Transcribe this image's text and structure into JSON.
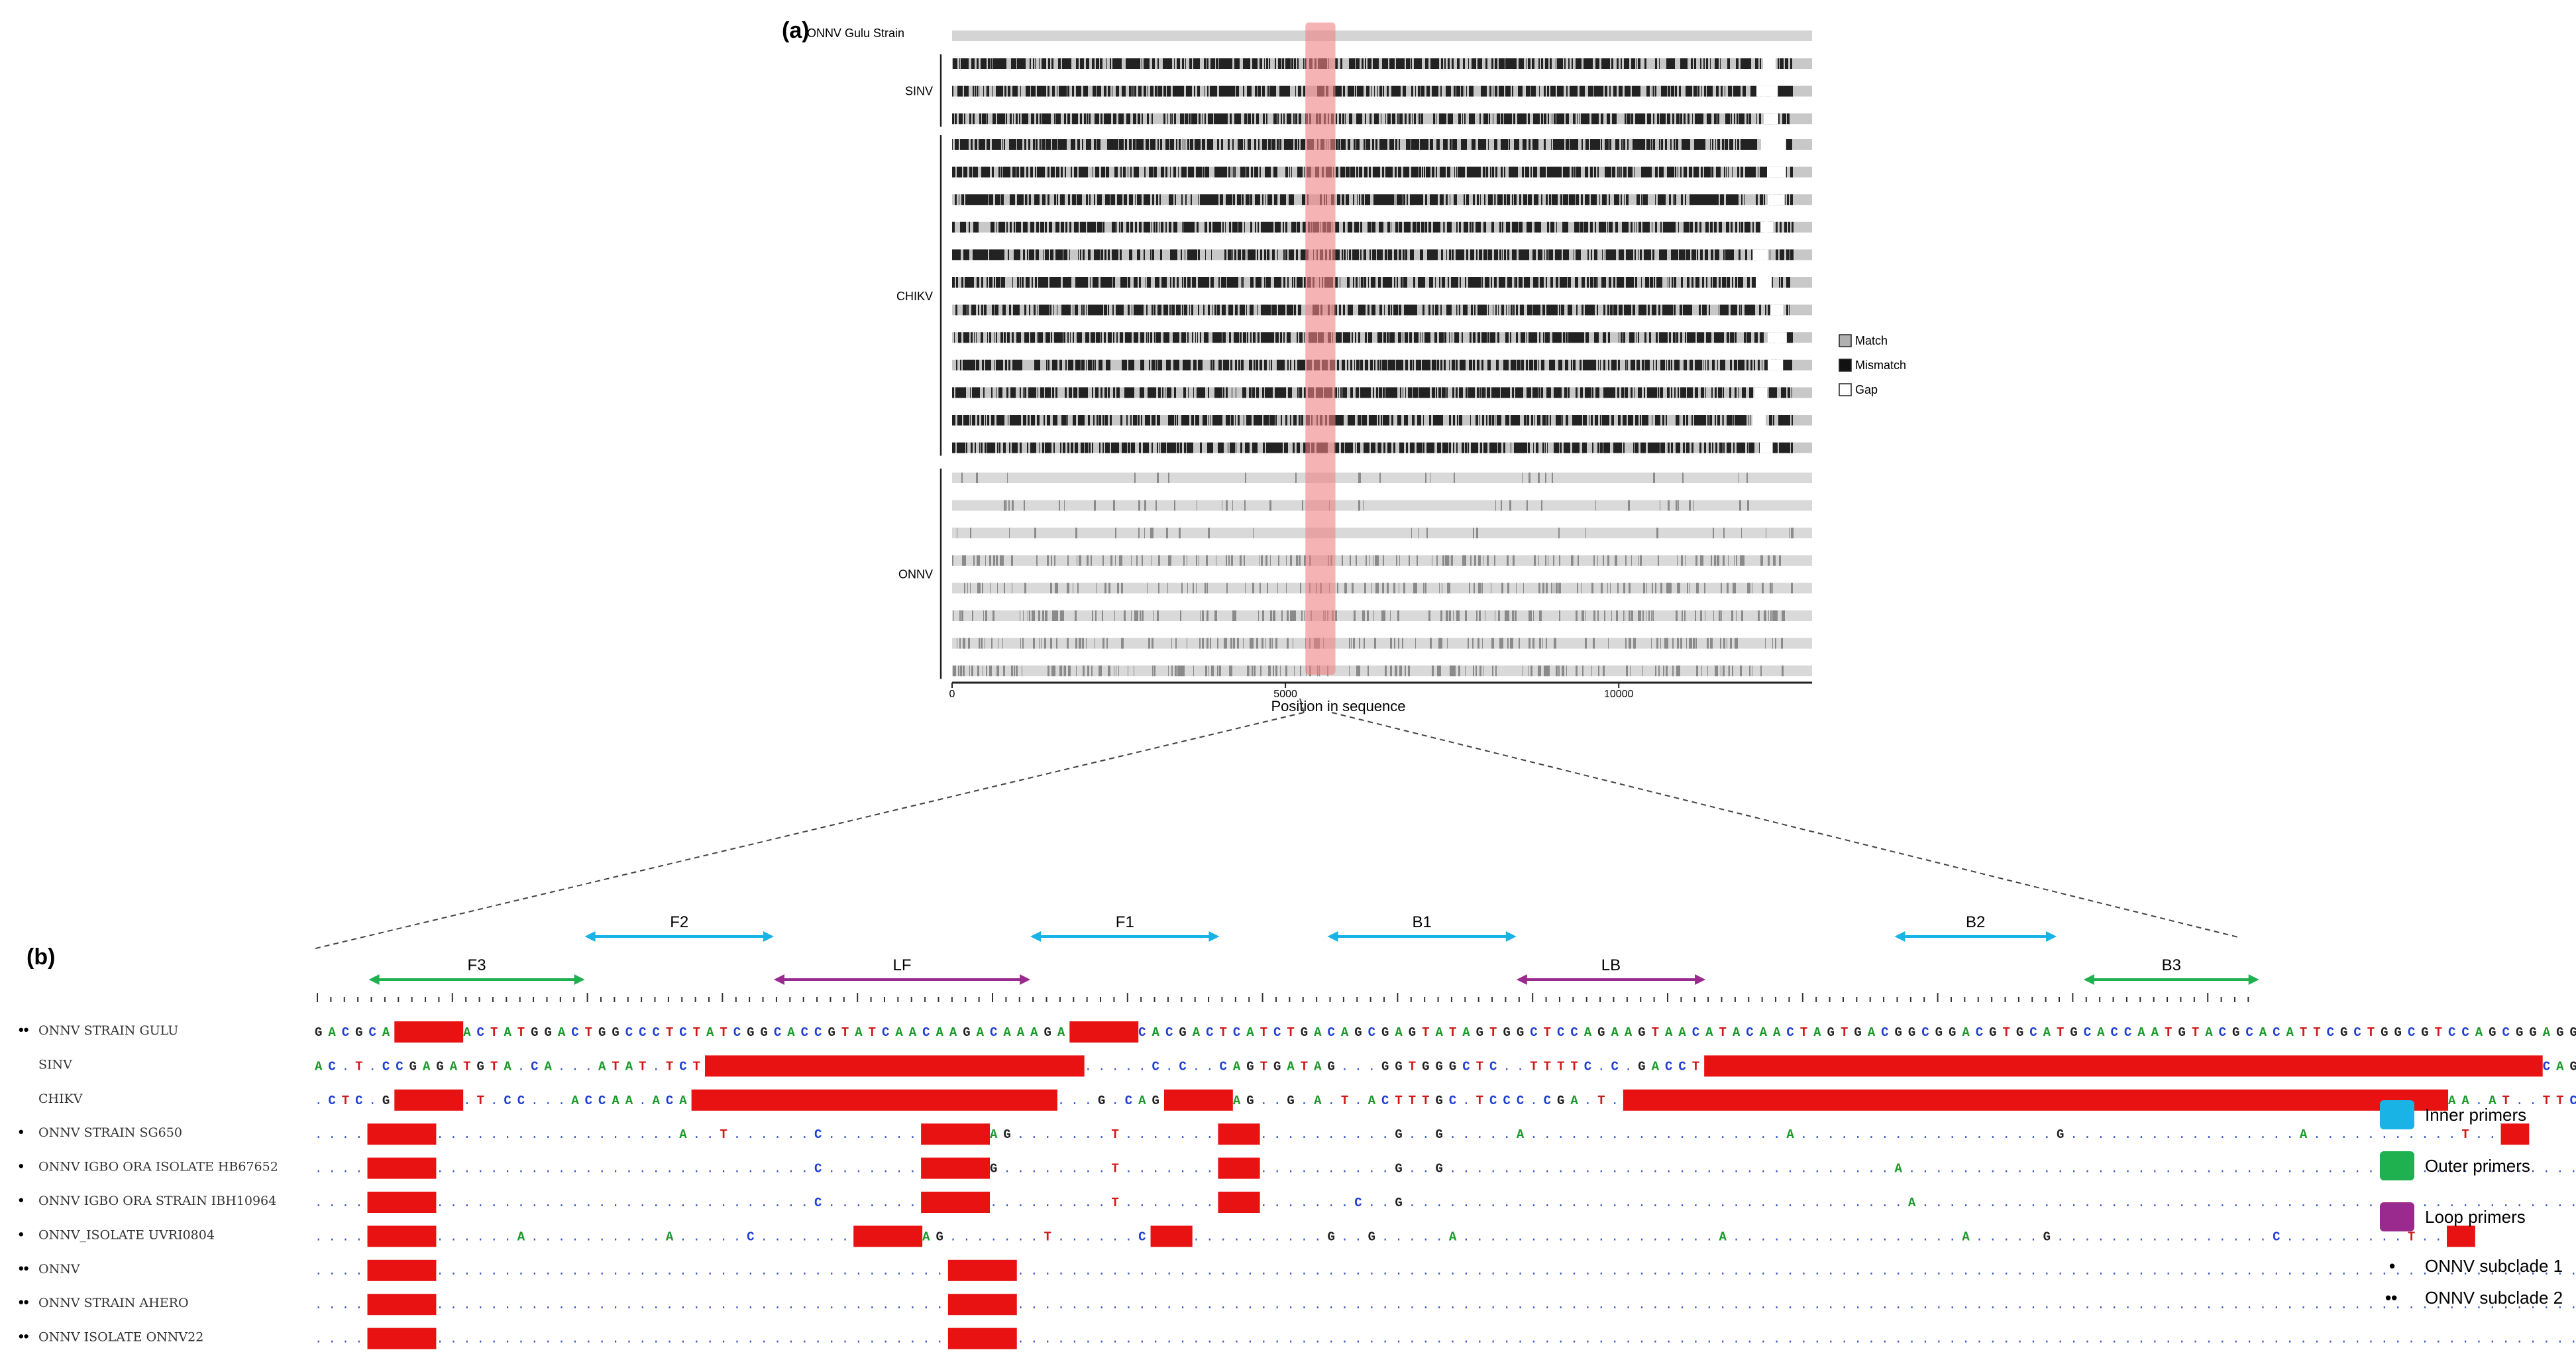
{
  "panel_a": {
    "label": "(a)",
    "reference_label": "ONNV Gulu Strain",
    "groups": [
      {
        "name": "SINV",
        "rows": 3
      },
      {
        "name": "CHIKV",
        "rows": 12
      },
      {
        "name": "ONNV",
        "rows": 8
      }
    ],
    "x_axis": {
      "title": "Position in sequence",
      "ticks": [
        {
          "value": 0,
          "label": "0"
        },
        {
          "value": 5000,
          "label": "5000"
        },
        {
          "value": 10000,
          "label": "10000"
        }
      ],
      "range": [
        0,
        12900
      ]
    },
    "highlight_region": {
      "start": 5300,
      "end": 5750,
      "color": "#f08080"
    },
    "legend": [
      {
        "label": "Match",
        "color": "#b0b0b0"
      },
      {
        "label": "Mismatch",
        "color": "#111111"
      },
      {
        "label": "Gap",
        "color": "#ffffff"
      }
    ],
    "colors": {
      "match": "#d4d4d4",
      "mismatch": "#222222"
    }
  },
  "panel_b": {
    "label": "(b)",
    "primers": [
      {
        "name": "F3",
        "type": "outer",
        "start": 4,
        "end": 20
      },
      {
        "name": "F2",
        "type": "inner",
        "start": 20,
        "end": 34
      },
      {
        "name": "LF",
        "type": "loop",
        "start": 34,
        "end": 53
      },
      {
        "name": "F1",
        "type": "inner",
        "start": 53,
        "end": 67
      },
      {
        "name": "B1",
        "type": "inner",
        "start": 75,
        "end": 89
      },
      {
        "name": "LB",
        "type": "loop",
        "start": 89,
        "end": 103
      },
      {
        "name": "B2",
        "type": "inner",
        "start": 117,
        "end": 129
      },
      {
        "name": "B3",
        "type": "outer",
        "start": 131,
        "end": 144
      }
    ],
    "sequences": [
      {
        "name": "ONNV STRAIN GULU",
        "marker": "••",
        "seq": "GACGCA~~~~~ACTATGGACTGGCCCTCTATCGGCACCGTATCAACAAGACAAAGA~~~~~CACGACTCATCTGACAGCGAGTATAGTGGCTCCAGAAGTAACATACAACTAGTGACGGCGGACGTGCATGCACCAATGTACGCACATTCGCTGGCGTCCAGCGGAGGTTCAATGCTGTCGCTGTCCAGTGAACCAGCTCAGAACGGCACAA-"
      },
      {
        "name": "SINV",
        "marker": "",
        "seq": "AC.T.CCGAGATGTA.CA...ATAT.TCT~~~~~~~~~~~~~~~~~~~~~~~~~~~~.....C.C..CAGTGATAG...GGTGGGCTC..TTTTC.C.GACCT~~~~~~~~~~~~~~~~~~~~~~~~~~~~~~~~~~~~~~~~~~~~~~~~~~~~~~~~~~~~~~CAGCTGCTCCA.TCA.TC.GTCA.CAGC.TGG.CA~~~~~~~~~~A"
      },
      {
        "name": "CHIKV",
        "marker": "",
        "seq": ".CTC.G~~~~~.T.CC...ACCAA.ACA~~~~~~~~~~~~~~~~~~~~~~~~~~~...G.CAG~~~~~AG..G.A.T.ACTTTGC.TCCC.CGA.T.~~~~~~~~~~~~~~~~~~~~~~~~~~~~~~~~~~~~~~~~~~~~~~~~~~~~~~~~~~~~~AA.AT..TTCG.....GT.A.A.TG.GT..TG.AT~~~~~~~~~~"
      },
      {
        "name": "ONNV STRAIN SG650",
        "marker": "•",
        "seq": "....~~~~~..................A..T......C.......~~~~~AG.......T.......~~~..........G..G.....A...................A...................G.................A...........T..~~"
      },
      {
        "name": "ONNV IGBO ORA ISOLATE HB67652",
        "marker": "•",
        "seq": "....~~~~~............................C.......~~~~~G........T.......~~~..........G..G.................................A....................................................T..~~"
      },
      {
        "name": "ONNV IGBO ORA STRAIN IBH10964",
        "marker": "•",
        "seq": "....~~~~~............................C.......~~~~~.........T.......~~~.......C..G.....................................A....................................................T..~~"
      },
      {
        "name": "ONNV_ISOLATE UVRI0804",
        "marker": "•",
        "seq": "....~~~~~......A..........A.....C.......~~~~~AG.......T......C~~~..........G..G.....A...................A.................A.....G................C.........T..~~"
      },
      {
        "name": "ONNV",
        "marker": "••",
        "seq": "....~~~~~......................................~~~~~............................................................................................................................................~~"
      },
      {
        "name": "ONNV STRAIN AHERO",
        "marker": "••",
        "seq": "....~~~~~......................................~~~~~............................................................................................................................................~~"
      },
      {
        "name": "ONNV ISOLATE ONNV22",
        "marker": "••",
        "seq": "....~~~~~......................................~~~~~............................................................................................................................................~~"
      }
    ],
    "legend": [
      {
        "label": "Inner primers",
        "color": "#19b3e6"
      },
      {
        "label": "Outer primers",
        "color": "#1fb050"
      },
      {
        "label": "Loop primers",
        "color": "#9b2a8e"
      }
    ],
    "markers": [
      {
        "symbol": "•",
        "label": "ONNV subclade 1"
      },
      {
        "symbol": "••",
        "label": "ONNV subclade 2"
      }
    ],
    "nucleotide_colors": {
      "A": "#1a9a2a",
      "C": "#1f3fd0",
      "G": "#222222",
      "T": "#d01818",
      "dot": "#3355cc",
      "gap": "#e81212"
    }
  }
}
